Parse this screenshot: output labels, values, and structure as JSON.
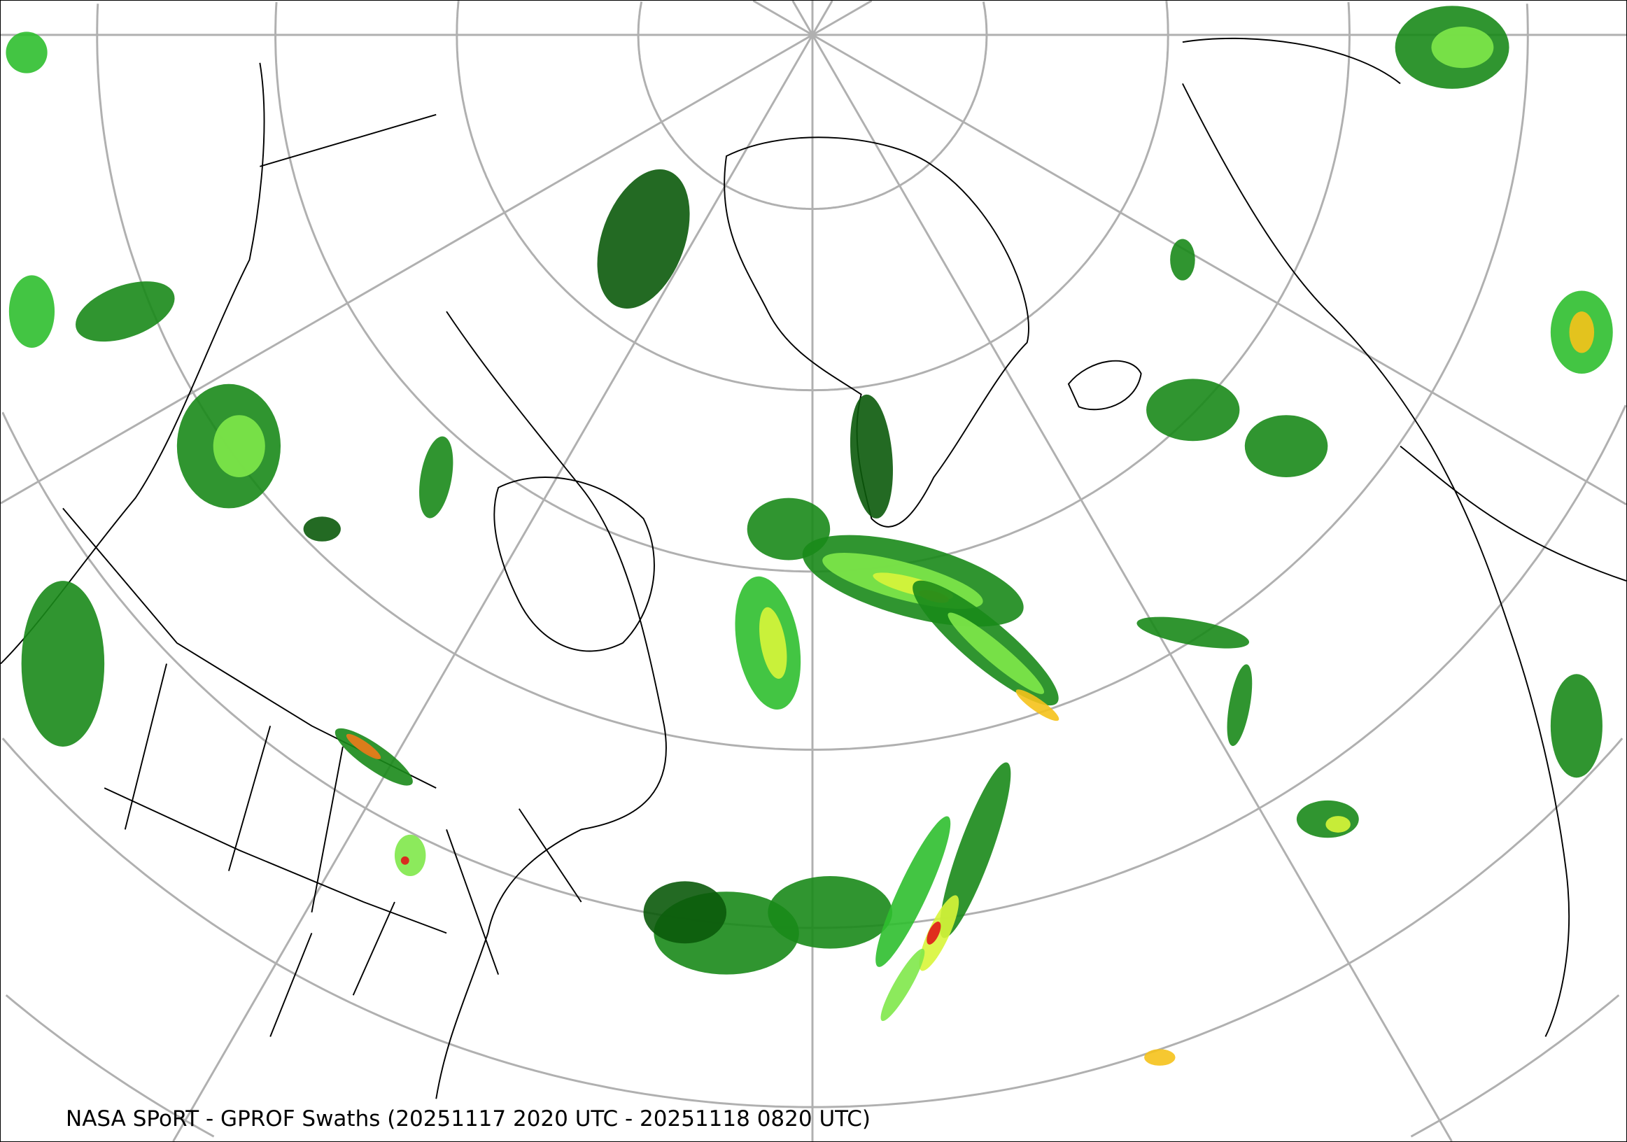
{
  "caption": "NASA SPoRT - GPROF Swaths (20251117 2020 UTC - 20251118 0820 UTC)",
  "map": {
    "projection": "north-polar stereographic",
    "graticule_color": "#b0b0b0",
    "coastline_color": "#000000",
    "precip_colors": [
      "#0b5a0b",
      "#1a8a1a",
      "#2fbf2f",
      "#7fe84a",
      "#d8f53a",
      "#f5c21b",
      "#f07a1a",
      "#e01818"
    ]
  }
}
